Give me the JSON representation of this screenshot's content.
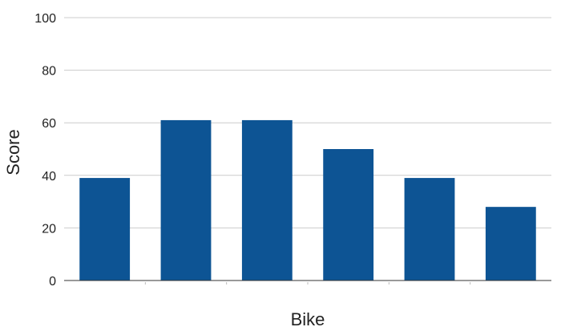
{
  "chart_data": {
    "type": "bar",
    "categories": [
      "",
      "",
      "",
      "",
      "",
      ""
    ],
    "values": [
      39,
      61,
      61,
      50,
      39,
      28
    ],
    "xlabel": "Bike",
    "ylabel": "Score",
    "ylim": [
      0,
      100
    ],
    "yticks": [
      0,
      20,
      40,
      60,
      80,
      100
    ],
    "grid": true,
    "bar_color": "#0d5494"
  }
}
